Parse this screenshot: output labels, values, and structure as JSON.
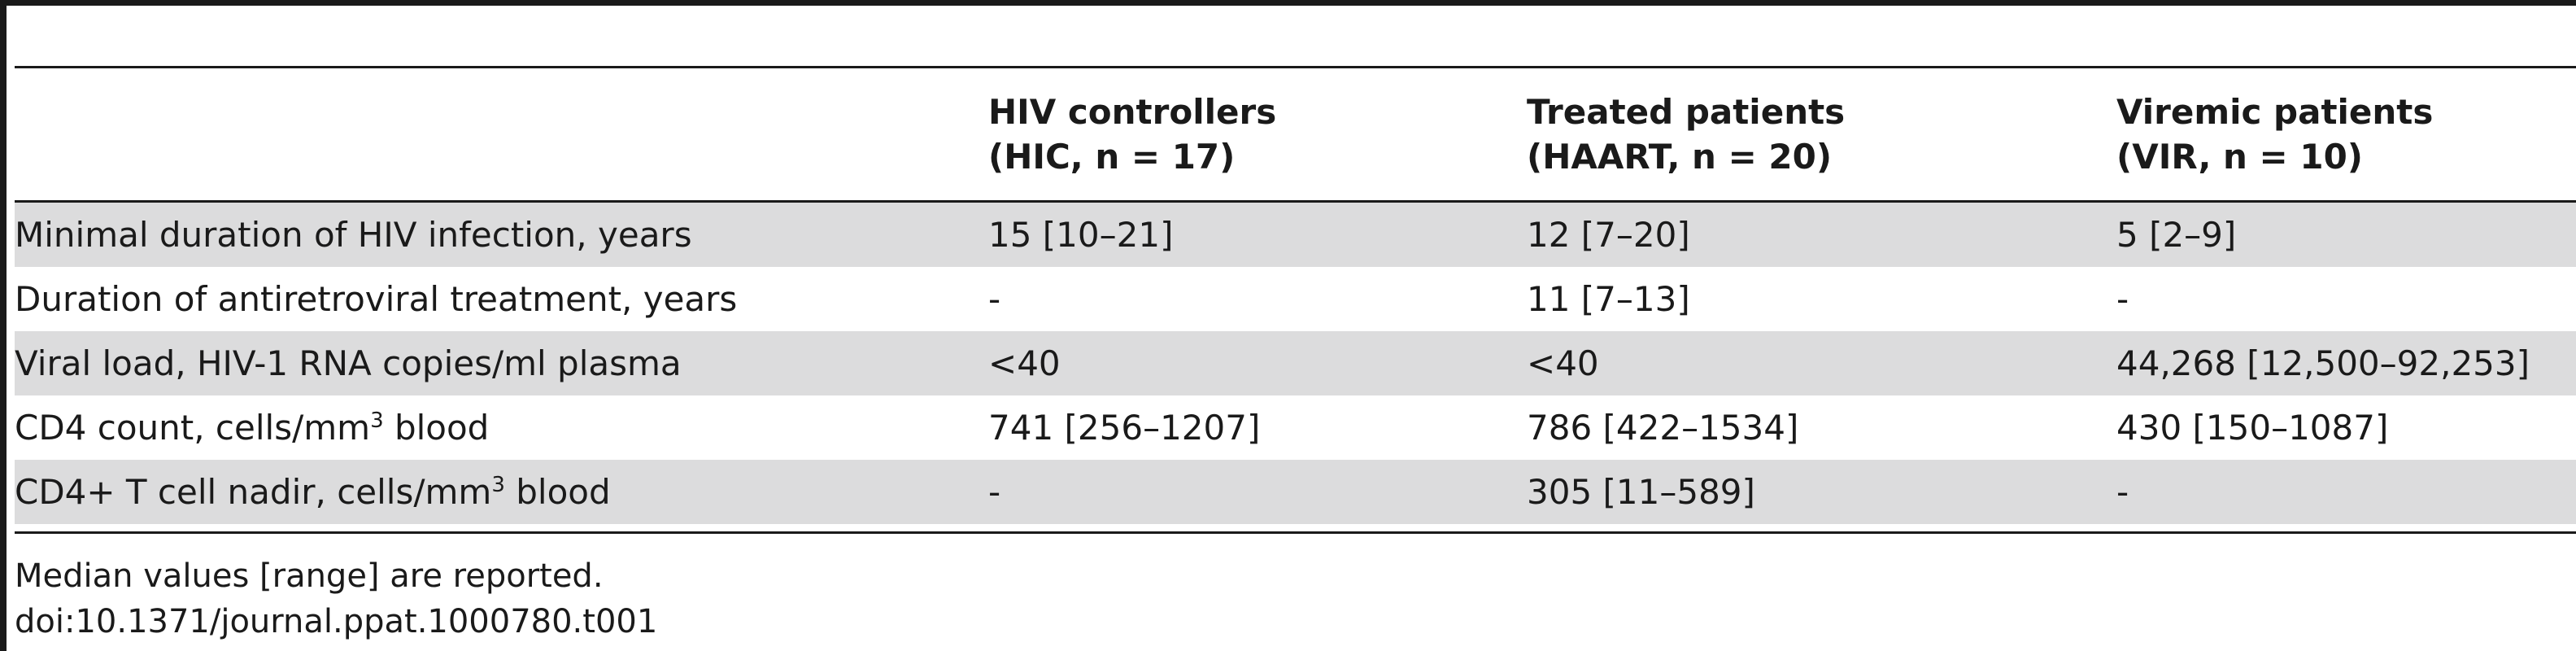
{
  "columns": [
    "",
    "HIV controllers\n(HIC, n = 17)",
    "Treated patients\n(HAART, n = 20)",
    "Viremic patients\n(VIR, n = 10)"
  ],
  "header": {
    "col1_line1": "HIV controllers",
    "col1_line2": "(HIC, n = 17)",
    "col2_line1": "Treated patients",
    "col2_line2": "(HAART, n = 20)",
    "col3_line1": "Viremic patients",
    "col3_line2": "(VIR, n = 10)"
  },
  "rows": [
    {
      "label": "Minimal duration of HIV infection, years",
      "hic": "15 [10–21]",
      "haart": "12 [7–20]",
      "vir": "5 [2–9]"
    },
    {
      "label": "Duration of antiretroviral treatment, years",
      "hic": "-",
      "haart": "11 [7–13]",
      "vir": "-"
    },
    {
      "label": "Viral load, HIV-1 RNA copies/ml plasma",
      "hic": "<40",
      "haart": "<40",
      "vir": "44,268 [12,500–92,253]"
    },
    {
      "label_pre": "CD4 count, cells/mm",
      "label_sup": "3",
      "label_post": " blood",
      "hic": "741 [256–1207]",
      "haart": "786 [422–1534]",
      "vir": "430 [150–1087]"
    },
    {
      "label_pre": "CD4+ T cell nadir, cells/mm",
      "label_sup": "3",
      "label_post": " blood",
      "hic": "-",
      "haart": "305 [11–589]",
      "vir": "-"
    }
  ],
  "footnotes": {
    "note": "Median values [range] are reported.",
    "doi": "doi:10.1371/journal.ppat.1000780.t001"
  }
}
